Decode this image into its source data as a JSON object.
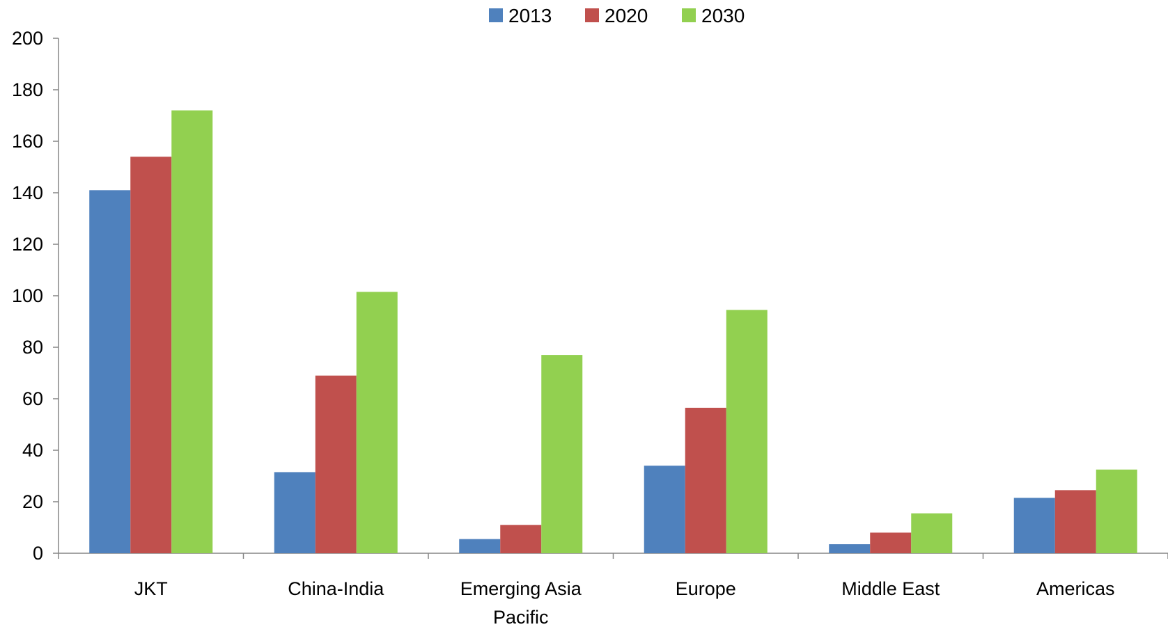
{
  "chart_data": {
    "type": "bar",
    "title": "",
    "xlabel": "",
    "ylabel": "",
    "categories": [
      "JKT",
      "China-India",
      "Emerging Asia Pacific",
      "Europe",
      "Middle East",
      "Americas"
    ],
    "category_lines": [
      [
        "JKT"
      ],
      [
        "China-India"
      ],
      [
        "Emerging Asia",
        "Pacific"
      ],
      [
        "Europe"
      ],
      [
        "Middle East"
      ],
      [
        "Americas"
      ]
    ],
    "series": [
      {
        "name": "2013",
        "color": "#4f81bd",
        "values": [
          141,
          31.5,
          5.5,
          34,
          3.5,
          21.5
        ]
      },
      {
        "name": "2020",
        "color": "#c0504d",
        "values": [
          154,
          69,
          11,
          56.5,
          8,
          24.5
        ]
      },
      {
        "name": "2030",
        "color": "#92d050",
        "values": [
          172,
          101.5,
          77,
          94.5,
          15.5,
          32.5
        ]
      }
    ],
    "ylim": [
      0,
      200
    ],
    "yticks": [
      "0",
      "20",
      "40",
      "60",
      "80",
      "100",
      "120",
      "140",
      "160",
      "180",
      "200"
    ],
    "grid": false,
    "legend_position": "top"
  }
}
